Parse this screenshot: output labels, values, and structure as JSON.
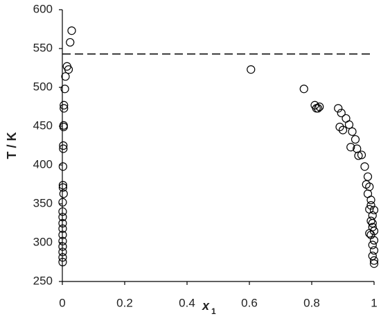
{
  "chart_data": {
    "type": "scatter",
    "xlabel": "x",
    "xlabel_sub": "1",
    "ylabel": "T / K",
    "xlim": [
      0,
      1
    ],
    "ylim": [
      250,
      600
    ],
    "xticks": [
      0,
      0.2,
      0.4,
      0.6,
      0.8,
      1
    ],
    "yticks": [
      250,
      300,
      350,
      400,
      450,
      500,
      550,
      600
    ],
    "reference_line": 543,
    "color": "#000000",
    "x": [
      0.03,
      0.025,
      0.015,
      0.02,
      0.01,
      0.008,
      0.005,
      0.005,
      0.004,
      0.004,
      0.003,
      0.003,
      0.002,
      0.002,
      0.002,
      0.001,
      0.001,
      0.001,
      0.001,
      0.001,
      0.001,
      0.001,
      0.001,
      0.001,
      0.001,
      0.001,
      0.004,
      0.605,
      0.775,
      0.81,
      0.815,
      0.825,
      0.82,
      0.885,
      0.895,
      0.89,
      0.9,
      0.91,
      0.92,
      0.93,
      0.925,
      0.94,
      0.945,
      0.95,
      0.96,
      0.97,
      0.98,
      0.975,
      0.985,
      0.98,
      0.99,
      0.99,
      0.985,
      1.0,
      0.995,
      0.99,
      0.995,
      1.0,
      0.99,
      1.0,
      0.995,
      1.0,
      0.995,
      1.0,
      1.0,
      0.985,
      0.995
    ],
    "y": [
      573,
      558,
      527,
      523,
      514,
      498,
      477,
      473,
      451,
      449,
      425,
      421,
      398,
      374,
      371,
      352,
      340,
      333,
      325,
      318,
      310,
      302,
      295,
      288,
      281,
      275,
      363,
      523,
      498,
      477,
      473,
      475,
      473,
      473,
      467,
      449,
      445,
      460,
      452,
      443,
      423,
      433,
      421,
      412,
      413,
      398,
      385,
      375,
      372,
      363,
      355,
      348,
      343,
      342,
      335,
      328,
      320,
      315,
      310,
      303,
      297,
      290,
      283,
      277,
      273,
      312,
      325
    ]
  }
}
